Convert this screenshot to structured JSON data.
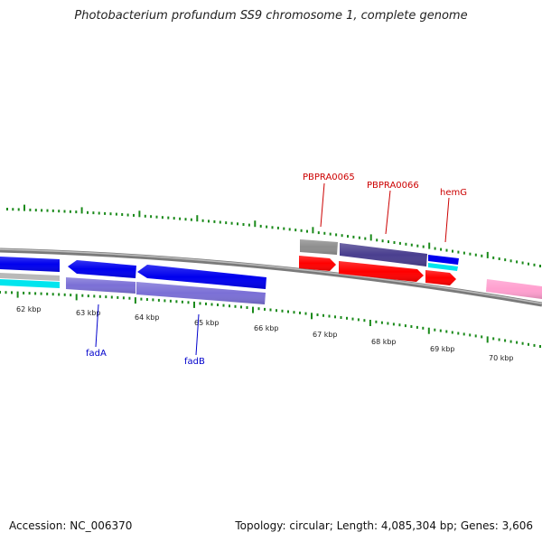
{
  "title": "Photobacterium profundum SS9 chromosome 1, complete genome",
  "footer": {
    "accession": "Accession: NC_006370",
    "summary": "Topology: circular; Length: 4,085,304 bp; Genes: 3,606"
  },
  "colors": {
    "background": "#ffffff",
    "backbone": "#8e8e8e",
    "tick": "#1a8a1a",
    "blue": "#0000ee",
    "light_purple": "#7b70d6",
    "dark_purple": "#4a3f8f",
    "red": "#ff0000",
    "cyan": "#00e5ee",
    "gray": "#909090",
    "pink": "#ff9fcf",
    "label_red": "#cc0000",
    "label_blue": "#0000cc"
  },
  "scale_labels": [
    "62 kbp",
    "63 kbp",
    "64 kbp",
    "65 kbp",
    "66 kbp",
    "67 kbp",
    "68 kbp",
    "69 kbp",
    "70 kbp"
  ],
  "gene_labels": [
    {
      "name": "fadA",
      "color": "label_blue"
    },
    {
      "name": "fadB",
      "color": "label_blue"
    },
    {
      "name": "PBPRA0065",
      "color": "label_red"
    },
    {
      "name": "PBPRA0066",
      "color": "label_red"
    },
    {
      "name": "hemG",
      "color": "label_red"
    }
  ]
}
